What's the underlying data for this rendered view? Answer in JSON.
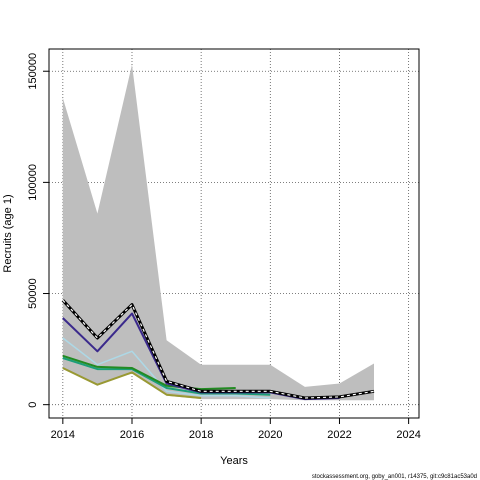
{
  "chart_data": {
    "type": "line",
    "title": "",
    "xlabel": "Years",
    "ylabel": "Recruits (age 1)",
    "xlim": [
      2013.6,
      2024.3
    ],
    "ylim": [
      -6000,
      160000
    ],
    "xticks": [
      2014,
      2016,
      2018,
      2020,
      2022,
      2024
    ],
    "yticks": [
      0,
      50000,
      100000,
      150000
    ],
    "ytick_labels": [
      "0",
      "50000",
      "100000",
      "150000"
    ],
    "grid": true,
    "interval": {
      "color": "#bebebe",
      "x": [
        2014,
        2015,
        2016,
        2017,
        2018,
        2019,
        2020,
        2021,
        2022,
        2023
      ],
      "upper": [
        138000,
        86000,
        153000,
        29000,
        18000,
        18000,
        18000,
        8000,
        9500,
        18500
      ],
      "lower": [
        16000,
        9000,
        14000,
        4000,
        2500,
        2500,
        2500,
        2000,
        2000,
        2000
      ]
    },
    "series": [
      {
        "color": "#ADD8E6",
        "width": 1.5,
        "dash": "",
        "x": [
          2014,
          2015,
          2016,
          2017,
          2018,
          2019,
          2020
        ],
        "values": [
          30000,
          18000,
          24000,
          6000,
          4000,
          4000,
          3000
        ]
      },
      {
        "color": "#999933",
        "width": 2,
        "dash": "",
        "x": [
          2014,
          2015,
          2016,
          2017,
          2018
        ],
        "values": [
          16500,
          9000,
          14500,
          4500,
          3000
        ]
      },
      {
        "color": "#1B9E77",
        "width": 2,
        "dash": "",
        "x": [
          2014,
          2015,
          2016,
          2017,
          2018,
          2019,
          2020
        ],
        "values": [
          21000,
          16000,
          16000,
          7500,
          5000,
          5000,
          4500
        ]
      },
      {
        "color": "#228B22",
        "width": 2,
        "dash": "",
        "x": [
          2014,
          2015,
          2016,
          2017,
          2018,
          2019
        ],
        "values": [
          22000,
          17000,
          16500,
          8500,
          7000,
          7500
        ]
      },
      {
        "color": "#3B2A8C",
        "width": 2,
        "dash": "",
        "x": [
          2014,
          2015,
          2016,
          2017,
          2018,
          2019,
          2020,
          2021,
          2022
        ],
        "values": [
          39000,
          24000,
          41000,
          9500,
          5500,
          5500,
          5500,
          2500,
          3000
        ]
      },
      {
        "color": "#000000",
        "width": 3,
        "dash": "",
        "x": [
          2014,
          2015,
          2016,
          2017,
          2018,
          2019,
          2020,
          2021,
          2022,
          2023
        ],
        "values": [
          47000,
          30000,
          45000,
          10500,
          6000,
          6000,
          6000,
          3000,
          3500,
          6000
        ]
      },
      {
        "color": "#ffffff",
        "width": 1.2,
        "dash": "3,3",
        "x": [
          2014,
          2015,
          2016,
          2017,
          2018,
          2019,
          2020,
          2021,
          2022,
          2023
        ],
        "values": [
          47000,
          30000,
          45000,
          10500,
          6000,
          6000,
          6000,
          3000,
          3500,
          6000
        ]
      }
    ]
  },
  "footer": {
    "credit": "stockassessment.org, goby_an001, r14375, git:c9c81ac53a0d"
  }
}
